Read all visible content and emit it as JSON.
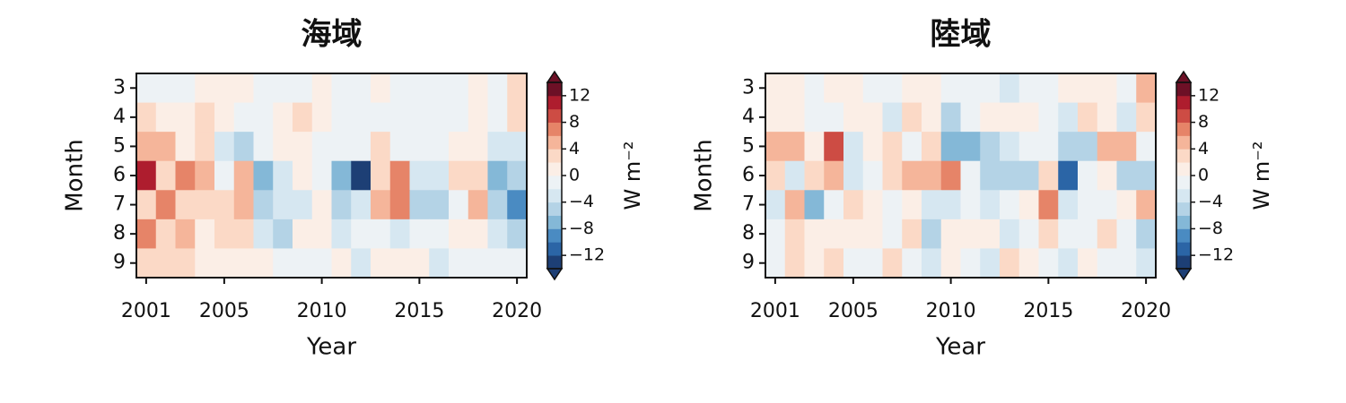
{
  "chart_data": [
    {
      "type": "heatmap",
      "title": "海域",
      "xlabel": "Year",
      "ylabel": "Month",
      "x": [
        2001,
        2002,
        2003,
        2004,
        2005,
        2006,
        2007,
        2008,
        2009,
        2010,
        2011,
        2012,
        2013,
        2014,
        2015,
        2016,
        2017,
        2018,
        2019,
        2020
      ],
      "y": [
        3,
        4,
        5,
        6,
        7,
        8,
        9
      ],
      "xlim": [
        2000.5,
        2020.5
      ],
      "ylim": [
        2.5,
        9.5
      ],
      "xticks": [
        2001,
        2005,
        2010,
        2015,
        2020
      ],
      "yticks": [
        3,
        4,
        5,
        6,
        7,
        8,
        9
      ],
      "z": [
        [
          -1,
          -1,
          -1,
          1,
          1,
          1,
          -1,
          -1,
          -1,
          1,
          -1,
          -1,
          1,
          -1,
          -1,
          -1,
          -1,
          1,
          -1,
          3
        ],
        [
          3,
          1,
          1,
          3,
          1,
          -1,
          -1,
          1,
          3,
          1,
          -1,
          -1,
          -1,
          -1,
          -1,
          -1,
          -1,
          1,
          -1,
          3
        ],
        [
          5,
          5,
          1,
          3,
          -3,
          -5,
          -1,
          1,
          1,
          -1,
          -1,
          -1,
          3,
          -1,
          -1,
          -1,
          1,
          1,
          -3,
          -3
        ],
        [
          11,
          3,
          7,
          5,
          -1,
          5,
          -7,
          -3,
          1,
          -1,
          -7,
          -13,
          3,
          7,
          -3,
          -3,
          3,
          3,
          -7,
          -5
        ],
        [
          3,
          7,
          3,
          3,
          3,
          5,
          -5,
          -3,
          -3,
          1,
          -5,
          -3,
          5,
          7,
          -5,
          -5,
          -1,
          5,
          -5,
          -9
        ],
        [
          7,
          3,
          5,
          1,
          3,
          3,
          -3,
          -5,
          1,
          1,
          -3,
          -1,
          -1,
          -3,
          -1,
          -1,
          1,
          1,
          -3,
          -5
        ],
        [
          3,
          3,
          3,
          1,
          1,
          1,
          1,
          -1,
          -1,
          -1,
          1,
          -3,
          1,
          1,
          1,
          -3,
          -1,
          -1,
          -1,
          -1
        ]
      ],
      "colorbar": {
        "label": "W m⁻²",
        "lim": [
          -14,
          14
        ],
        "ticks": [
          {
            "value": -12,
            "label": "−12"
          },
          {
            "value": -8,
            "label": "−8"
          },
          {
            "value": -4,
            "label": "−4"
          },
          0,
          4,
          8,
          12
        ],
        "colors": [
          "#1d3f75",
          "#2b65a6",
          "#4a8bc2",
          "#84b8d7",
          "#b4d3e6",
          "#d6e7f1",
          "#edf2f5",
          "#fbeee6",
          "#fbd9c6",
          "#f5b59a",
          "#e68468",
          "#cd4c44",
          "#ae1d2e",
          "#6d1026"
        ]
      }
    },
    {
      "type": "heatmap",
      "title": "陸域",
      "xlabel": "Year",
      "ylabel": "Month",
      "x": [
        2001,
        2002,
        2003,
        2004,
        2005,
        2006,
        2007,
        2008,
        2009,
        2010,
        2011,
        2012,
        2013,
        2014,
        2015,
        2016,
        2017,
        2018,
        2019,
        2020
      ],
      "y": [
        3,
        4,
        5,
        6,
        7,
        8,
        9
      ],
      "xlim": [
        2000.5,
        2020.5
      ],
      "ylim": [
        2.5,
        9.5
      ],
      "xticks": [
        2001,
        2005,
        2010,
        2015,
        2020
      ],
      "yticks": [
        3,
        4,
        5,
        6,
        7,
        8,
        9
      ],
      "z": [
        [
          1,
          1,
          -1,
          1,
          1,
          -1,
          -1,
          1,
          1,
          -1,
          -1,
          -1,
          -3,
          -1,
          -1,
          1,
          1,
          1,
          -1,
          5
        ],
        [
          1,
          1,
          -1,
          -1,
          1,
          1,
          -3,
          3,
          1,
          -5,
          -1,
          1,
          1,
          1,
          -1,
          -3,
          3,
          1,
          -3,
          3
        ],
        [
          5,
          5,
          1,
          9,
          -3,
          1,
          3,
          -1,
          3,
          -7,
          -7,
          -5,
          -3,
          -1,
          -1,
          -5,
          -5,
          5,
          5,
          -1
        ],
        [
          3,
          -3,
          3,
          5,
          -3,
          -1,
          3,
          5,
          5,
          7,
          -1,
          -5,
          -5,
          -5,
          3,
          -11,
          -1,
          1,
          -5,
          -5
        ],
        [
          -3,
          5,
          -7,
          -1,
          3,
          1,
          -1,
          1,
          -3,
          -3,
          -1,
          -3,
          -1,
          1,
          7,
          -3,
          -1,
          -1,
          1,
          5
        ],
        [
          -1,
          3,
          1,
          1,
          1,
          1,
          -1,
          3,
          -5,
          1,
          1,
          1,
          -3,
          -1,
          3,
          -1,
          -1,
          3,
          -1,
          -5
        ],
        [
          -1,
          3,
          1,
          3,
          -1,
          -1,
          3,
          -1,
          -3,
          1,
          -1,
          -3,
          3,
          1,
          -1,
          -3,
          1,
          -1,
          -1,
          -3
        ]
      ],
      "colorbar": {
        "label": "W m⁻²",
        "lim": [
          -14,
          14
        ],
        "ticks": [
          {
            "value": -12,
            "label": "−12"
          },
          {
            "value": -8,
            "label": "−8"
          },
          {
            "value": -4,
            "label": "−4"
          },
          0,
          4,
          8,
          12
        ],
        "colors": [
          "#1d3f75",
          "#2b65a6",
          "#4a8bc2",
          "#84b8d7",
          "#b4d3e6",
          "#d6e7f1",
          "#edf2f5",
          "#fbeee6",
          "#fbd9c6",
          "#f5b59a",
          "#e68468",
          "#cd4c44",
          "#ae1d2e",
          "#6d1026"
        ]
      }
    }
  ]
}
